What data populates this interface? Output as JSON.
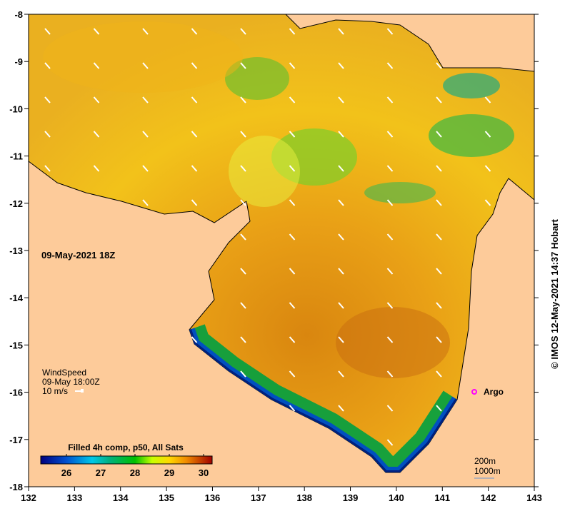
{
  "map": {
    "date_label": "09-May-2021 18Z",
    "land_color": "#fdcb9a",
    "x_ticks": [
      "132",
      "133",
      "134",
      "135",
      "136",
      "137",
      "138",
      "139",
      "140",
      "141",
      "142",
      "143"
    ],
    "y_ticks": [
      "-8",
      "-9",
      "-10",
      "-11",
      "-12",
      "-13",
      "-14",
      "-15",
      "-16",
      "-17",
      "-18"
    ],
    "wind": {
      "title": "WindSpeed",
      "time": "09-May 18:00Z",
      "scale": "10 m/s"
    },
    "argo_label": "Argo",
    "argo_color": "#ff00ff",
    "depth_labels": [
      "200m",
      "1000m"
    ],
    "credit": "© IMOS 12-May-2021 14:37 Hobart"
  },
  "colorbar": {
    "title": "Filled 4h comp, p50, All Sats",
    "ticks": [
      "26",
      "27",
      "28",
      "29",
      "30"
    ],
    "range": [
      25.25,
      30.25
    ]
  }
}
